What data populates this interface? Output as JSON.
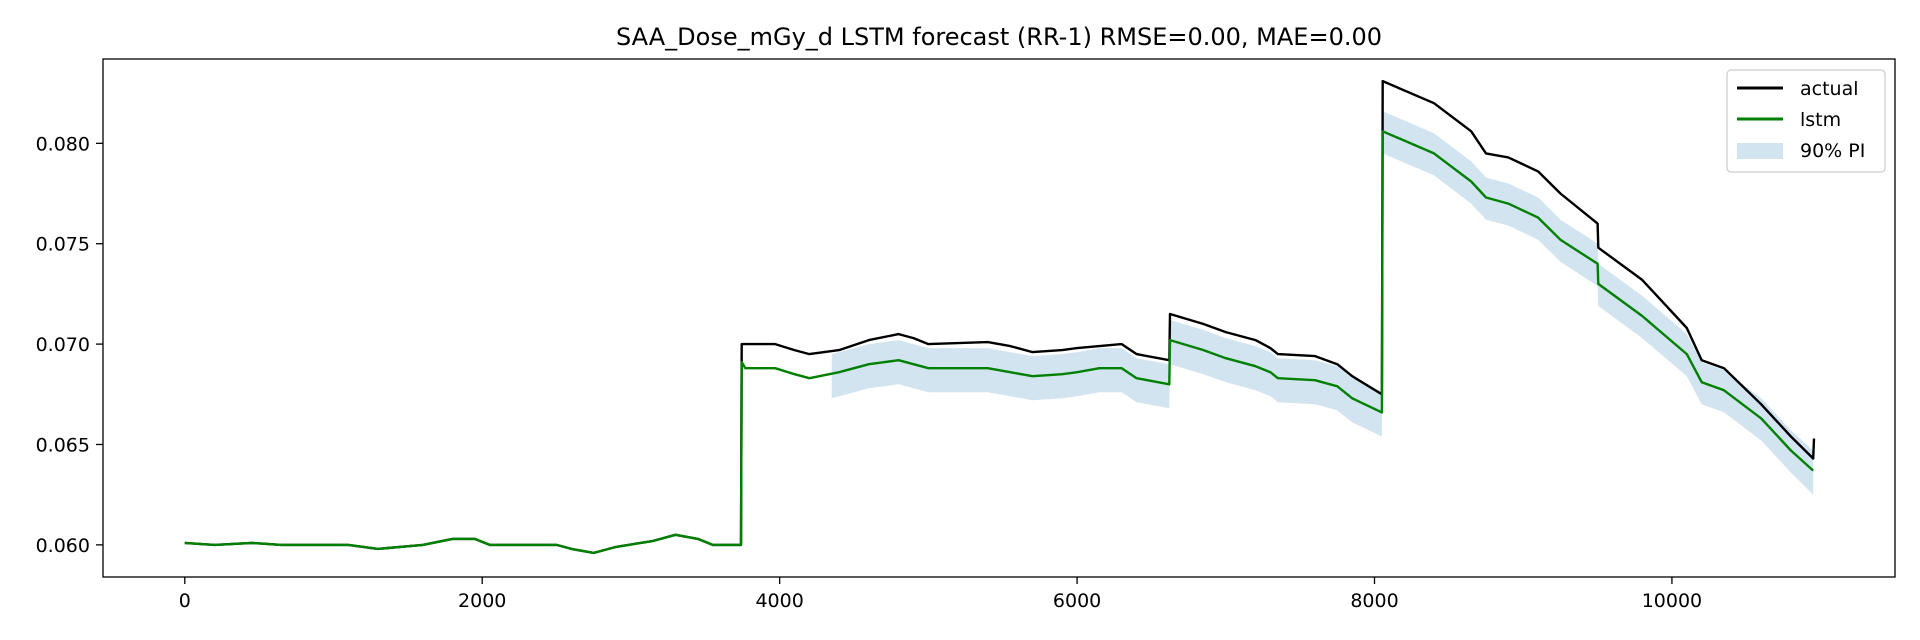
{
  "chart_data": {
    "type": "line",
    "title": "SAA_Dose_mGy_d LSTM forecast (RR-1)  RMSE=0.00, MAE=0.00",
    "xlabel": "",
    "ylabel": "",
    "xlim": [
      -550,
      11500
    ],
    "ylim": [
      0.0584,
      0.0842
    ],
    "xticks": [
      0,
      2000,
      4000,
      6000,
      8000,
      10000
    ],
    "yticks": [
      0.06,
      0.065,
      0.07,
      0.075,
      0.08
    ],
    "xtick_labels": [
      "0",
      "2000",
      "4000",
      "6000",
      "8000",
      "10000"
    ],
    "ytick_labels": [
      "0.060",
      "0.065",
      "0.070",
      "0.075",
      "0.080"
    ],
    "legend_position": "upper right",
    "grid": false,
    "series": [
      {
        "name": "actual",
        "kind": "line",
        "color": "#000000",
        "points": [
          [
            0,
            0.0601
          ],
          [
            200,
            0.06
          ],
          [
            450,
            0.0601
          ],
          [
            650,
            0.06
          ],
          [
            1100,
            0.06
          ],
          [
            1300,
            0.0598
          ],
          [
            1600,
            0.06
          ],
          [
            1800,
            0.0603
          ],
          [
            1950,
            0.0603
          ],
          [
            2050,
            0.06
          ],
          [
            2500,
            0.06
          ],
          [
            2600,
            0.0598
          ],
          [
            2750,
            0.0596
          ],
          [
            2900,
            0.0599
          ],
          [
            3150,
            0.0602
          ],
          [
            3300,
            0.0605
          ],
          [
            3450,
            0.0603
          ],
          [
            3550,
            0.06
          ],
          [
            3740,
            0.06
          ],
          [
            3745,
            0.07
          ],
          [
            3970,
            0.07
          ],
          [
            4100,
            0.0697
          ],
          [
            4200,
            0.0695
          ],
          [
            4400,
            0.0697
          ],
          [
            4600,
            0.0702
          ],
          [
            4800,
            0.0705
          ],
          [
            4900,
            0.0703
          ],
          [
            5000,
            0.07
          ],
          [
            5400,
            0.0701
          ],
          [
            5550,
            0.0699
          ],
          [
            5700,
            0.0696
          ],
          [
            5900,
            0.0697
          ],
          [
            6000,
            0.0698
          ],
          [
            6150,
            0.0699
          ],
          [
            6300,
            0.07
          ],
          [
            6400,
            0.0695
          ],
          [
            6620,
            0.0692
          ],
          [
            6625,
            0.0715
          ],
          [
            6850,
            0.071
          ],
          [
            7000,
            0.0706
          ],
          [
            7200,
            0.0702
          ],
          [
            7300,
            0.0698
          ],
          [
            7350,
            0.0695
          ],
          [
            7600,
            0.0694
          ],
          [
            7750,
            0.069
          ],
          [
            7850,
            0.0684
          ],
          [
            8050,
            0.0675
          ],
          [
            8055,
            0.0831
          ],
          [
            8400,
            0.082
          ],
          [
            8650,
            0.0806
          ],
          [
            8750,
            0.0795
          ],
          [
            8900,
            0.0793
          ],
          [
            9100,
            0.0786
          ],
          [
            9250,
            0.0775
          ],
          [
            9500,
            0.076
          ],
          [
            9505,
            0.0748
          ],
          [
            9800,
            0.0732
          ],
          [
            10100,
            0.0708
          ],
          [
            10200,
            0.0692
          ],
          [
            10350,
            0.0688
          ],
          [
            10600,
            0.067
          ],
          [
            10800,
            0.0654
          ],
          [
            10950,
            0.0643
          ],
          [
            10955,
            0.0653
          ]
        ]
      },
      {
        "name": "lstm",
        "kind": "line",
        "color": "#008000",
        "points": [
          [
            0,
            0.0601
          ],
          [
            200,
            0.06
          ],
          [
            450,
            0.0601
          ],
          [
            650,
            0.06
          ],
          [
            1100,
            0.06
          ],
          [
            1300,
            0.0598
          ],
          [
            1600,
            0.06
          ],
          [
            1800,
            0.0603
          ],
          [
            1950,
            0.0603
          ],
          [
            2050,
            0.06
          ],
          [
            2500,
            0.06
          ],
          [
            2600,
            0.0598
          ],
          [
            2750,
            0.0596
          ],
          [
            2900,
            0.0599
          ],
          [
            3150,
            0.0602
          ],
          [
            3300,
            0.0605
          ],
          [
            3450,
            0.0603
          ],
          [
            3550,
            0.06
          ],
          [
            3740,
            0.06
          ],
          [
            3745,
            0.0691
          ],
          [
            3770,
            0.0688
          ],
          [
            3970,
            0.0688
          ],
          [
            4100,
            0.0685
          ],
          [
            4200,
            0.0683
          ],
          [
            4400,
            0.0686
          ],
          [
            4600,
            0.069
          ],
          [
            4800,
            0.0692
          ],
          [
            4900,
            0.069
          ],
          [
            5000,
            0.0688
          ],
          [
            5400,
            0.0688
          ],
          [
            5550,
            0.0686
          ],
          [
            5700,
            0.0684
          ],
          [
            5900,
            0.0685
          ],
          [
            6000,
            0.0686
          ],
          [
            6150,
            0.0688
          ],
          [
            6300,
            0.0688
          ],
          [
            6400,
            0.0683
          ],
          [
            6620,
            0.068
          ],
          [
            6625,
            0.0702
          ],
          [
            6850,
            0.0697
          ],
          [
            7000,
            0.0693
          ],
          [
            7200,
            0.0689
          ],
          [
            7300,
            0.0686
          ],
          [
            7350,
            0.0683
          ],
          [
            7600,
            0.0682
          ],
          [
            7750,
            0.0679
          ],
          [
            7850,
            0.0673
          ],
          [
            8050,
            0.0666
          ],
          [
            8055,
            0.0806
          ],
          [
            8400,
            0.0795
          ],
          [
            8650,
            0.0781
          ],
          [
            8750,
            0.0773
          ],
          [
            8900,
            0.077
          ],
          [
            9100,
            0.0763
          ],
          [
            9250,
            0.0752
          ],
          [
            9500,
            0.074
          ],
          [
            9505,
            0.073
          ],
          [
            9800,
            0.0714
          ],
          [
            10100,
            0.0695
          ],
          [
            10200,
            0.0681
          ],
          [
            10350,
            0.0677
          ],
          [
            10600,
            0.0663
          ],
          [
            10800,
            0.0647
          ],
          [
            10950,
            0.0637
          ]
        ]
      },
      {
        "name": "90% PI",
        "kind": "band",
        "color": "#1f77b4",
        "opacity": 0.2,
        "x": [
          4350,
          4400,
          4600,
          4800,
          4900,
          5000,
          5400,
          5550,
          5700,
          5900,
          6000,
          6150,
          6300,
          6400,
          6620,
          6625,
          6850,
          7000,
          7200,
          7300,
          7350,
          7600,
          7750,
          7850,
          8050,
          8055,
          8400,
          8650,
          8750,
          8900,
          9100,
          9250,
          9500,
          9505,
          9800,
          10100,
          10200,
          10350,
          10600,
          10800,
          10950
        ],
        "lower": [
          0.0673,
          0.0674,
          0.0678,
          0.068,
          0.0678,
          0.0676,
          0.0676,
          0.0674,
          0.0672,
          0.0673,
          0.0674,
          0.0676,
          0.0676,
          0.0671,
          0.0668,
          0.069,
          0.0685,
          0.0681,
          0.0677,
          0.0674,
          0.0671,
          0.067,
          0.0667,
          0.0661,
          0.0654,
          0.0795,
          0.0784,
          0.077,
          0.0762,
          0.0759,
          0.0752,
          0.0741,
          0.0729,
          0.0719,
          0.0703,
          0.0684,
          0.067,
          0.0666,
          0.0652,
          0.0636,
          0.0625
        ],
        "upper": [
          0.0695,
          0.0696,
          0.07,
          0.0702,
          0.07,
          0.0698,
          0.0698,
          0.0696,
          0.0694,
          0.0695,
          0.0696,
          0.0698,
          0.0698,
          0.0693,
          0.069,
          0.0712,
          0.0707,
          0.0703,
          0.0699,
          0.0696,
          0.0693,
          0.0692,
          0.0689,
          0.0683,
          0.0676,
          0.0816,
          0.0805,
          0.0791,
          0.0783,
          0.078,
          0.0773,
          0.0762,
          0.075,
          0.074,
          0.0724,
          0.0705,
          0.0691,
          0.0687,
          0.0673,
          0.0657,
          0.0647
        ]
      }
    ]
  }
}
